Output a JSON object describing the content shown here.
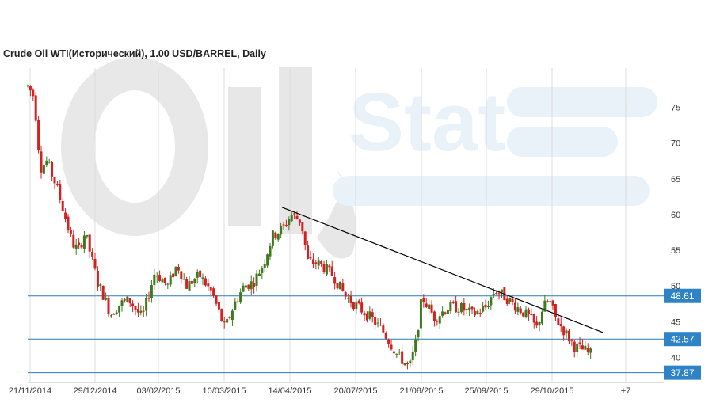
{
  "chart_data": {
    "type": "candlestick",
    "title": "Crude Oil WTI(Исторический), 1.00 USD/BARREL, Daily",
    "watermark": "OilStat",
    "ylim": [
      36.5,
      80.5
    ],
    "y_ticks": [
      40,
      45,
      50,
      55,
      60,
      65,
      70,
      75
    ],
    "x_ticks": [
      "21/11/2014",
      "29/12/2014",
      "03/02/2015",
      "10/03/2015",
      "14/04/2015",
      "20/07/2015",
      "21/08/2015",
      "25/09/2015",
      "29/10/2015",
      "+7"
    ],
    "grid": true,
    "colors": {
      "up": "#3d7a1e",
      "down": "#d42020",
      "level": "#2a7cb8",
      "badge": "#2e82c6",
      "trend": "#000000",
      "grid": "#dcdcdc"
    },
    "levels": [
      {
        "label": "48.61",
        "value": 48.61
      },
      {
        "label": "42.57",
        "value": 42.57
      },
      {
        "label": "37.87",
        "value": 37.87
      }
    ],
    "trendline": {
      "start": [
        0.4,
        61.0
      ],
      "end": [
        0.904,
        43.5
      ]
    },
    "price_path": [
      [
        0.0,
        78.0
      ],
      [
        0.01,
        76.5
      ],
      [
        0.02,
        66.5
      ],
      [
        0.03,
        67.5
      ],
      [
        0.045,
        64.0
      ],
      [
        0.055,
        61.0
      ],
      [
        0.07,
        56.0
      ],
      [
        0.08,
        55.0
      ],
      [
        0.09,
        57.5
      ],
      [
        0.1,
        54.0
      ],
      [
        0.11,
        50.5
      ],
      [
        0.12,
        48.5
      ],
      [
        0.13,
        46.0
      ],
      [
        0.145,
        47.5
      ],
      [
        0.16,
        48.0
      ],
      [
        0.18,
        45.5
      ],
      [
        0.2,
        52.0
      ],
      [
        0.22,
        50.0
      ],
      [
        0.235,
        53.0
      ],
      [
        0.25,
        50.0
      ],
      [
        0.27,
        51.5
      ],
      [
        0.29,
        49.0
      ],
      [
        0.31,
        44.0
      ],
      [
        0.325,
        47.5
      ],
      [
        0.34,
        50.0
      ],
      [
        0.355,
        50.5
      ],
      [
        0.37,
        53.0
      ],
      [
        0.385,
        57.0
      ],
      [
        0.4,
        58.0
      ],
      [
        0.415,
        60.0
      ],
      [
        0.43,
        59.0
      ],
      [
        0.44,
        53.5
      ],
      [
        0.46,
        53.0
      ],
      [
        0.48,
        51.5
      ],
      [
        0.5,
        48.5
      ],
      [
        0.52,
        47.0
      ],
      [
        0.54,
        45.5
      ],
      [
        0.56,
        43.5
      ],
      [
        0.58,
        40.5
      ],
      [
        0.6,
        38.5
      ],
      [
        0.61,
        42.0
      ],
      [
        0.62,
        48.5
      ],
      [
        0.64,
        45.5
      ],
      [
        0.66,
        47.0
      ],
      [
        0.68,
        47.0
      ],
      [
        0.7,
        46.0
      ],
      [
        0.72,
        47.0
      ],
      [
        0.735,
        49.5
      ],
      [
        0.75,
        48.5
      ],
      [
        0.77,
        47.0
      ],
      [
        0.79,
        45.5
      ],
      [
        0.8,
        44.0
      ],
      [
        0.81,
        47.0
      ],
      [
        0.82,
        48.0
      ],
      [
        0.83,
        45.5
      ],
      [
        0.845,
        43.5
      ],
      [
        0.86,
        41.5
      ],
      [
        0.875,
        41.0
      ],
      [
        0.885,
        40.5
      ]
    ]
  }
}
